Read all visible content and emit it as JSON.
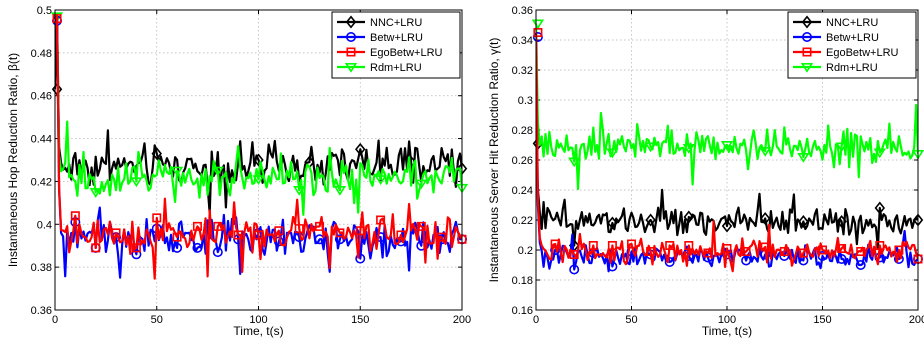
{
  "chart_data": [
    {
      "type": "line",
      "xlabel": "Time, t(s)",
      "ylabel": "Instantaneous Hop Reduction Ratio, β(t)",
      "xlim": [
        0,
        200
      ],
      "ylim": [
        0.36,
        0.5
      ],
      "xticks": [
        "0",
        "50",
        "100",
        "150",
        "200"
      ],
      "yticks": [
        "0.36",
        "0.38",
        "0.4",
        "0.42",
        "0.44",
        "0.46",
        "0.48",
        "0.5"
      ],
      "grid": true,
      "legend_position": "top-right",
      "series": [
        {
          "name": "NNC+LRU",
          "color": "#000000",
          "marker": "diamond",
          "start": [
            0.463,
            0.497,
            0.436
          ],
          "level": 0.427,
          "spread": 0.009,
          "marker_points": [
            [
              1,
              0.463
            ],
            [
              50,
              0.433
            ],
            [
              100,
              0.43
            ],
            [
              125,
              0.429
            ],
            [
              150,
              0.435
            ],
            [
              175,
              0.429
            ],
            [
              200,
              0.426
            ]
          ]
        },
        {
          "name": "Betw+LRU",
          "color": "#0000ff",
          "marker": "circle",
          "start": [
            0.495,
            0.497,
            0.416
          ],
          "level": 0.394,
          "spread": 0.008,
          "marker_points": [
            [
              1,
              0.495
            ],
            [
              10,
              0.401
            ],
            [
              20,
              0.389
            ],
            [
              30,
              0.394
            ],
            [
              40,
              0.386
            ],
            [
              50,
              0.398
            ],
            [
              60,
              0.389
            ],
            [
              70,
              0.389
            ],
            [
              80,
              0.387
            ],
            [
              90,
              0.393
            ],
            [
              100,
              0.396
            ],
            [
              110,
              0.392
            ],
            [
              120,
              0.394
            ],
            [
              130,
              0.393
            ],
            [
              140,
              0.393
            ],
            [
              150,
              0.384
            ],
            [
              160,
              0.394
            ],
            [
              170,
              0.392
            ],
            [
              180,
              0.39
            ],
            [
              190,
              0.393
            ],
            [
              200,
              0.393
            ]
          ]
        },
        {
          "name": "EgoBetw+LRU",
          "color": "#ff0000",
          "marker": "square",
          "start": [
            0.496,
            0.497,
            0.417
          ],
          "level": 0.395,
          "spread": 0.008,
          "marker_points": [
            [
              1,
              0.496
            ],
            [
              10,
              0.404
            ],
            [
              20,
              0.389
            ],
            [
              30,
              0.396
            ],
            [
              40,
              0.389
            ],
            [
              50,
              0.403
            ],
            [
              60,
              0.394
            ],
            [
              70,
              0.399
            ],
            [
              80,
              0.399
            ],
            [
              90,
              0.395
            ],
            [
              100,
              0.395
            ],
            [
              110,
              0.397
            ],
            [
              120,
              0.398
            ],
            [
              130,
              0.399
            ],
            [
              140,
              0.396
            ],
            [
              150,
              0.397
            ],
            [
              160,
              0.402
            ],
            [
              170,
              0.395
            ],
            [
              180,
              0.399
            ],
            [
              190,
              0.394
            ],
            [
              200,
              0.393
            ]
          ]
        },
        {
          "name": "Rdm+LRU",
          "color": "#00ff00",
          "marker": "triangle-down",
          "start": [
            0.497,
            0.498,
            0.432
          ],
          "level": 0.422,
          "spread": 0.008,
          "marker_points": [
            [
              1,
              0.497
            ],
            [
              20,
              0.415
            ],
            [
              40,
              0.42
            ],
            [
              60,
              0.425
            ],
            [
              80,
              0.425
            ],
            [
              100,
              0.421
            ],
            [
              120,
              0.416
            ],
            [
              140,
              0.416
            ],
            [
              160,
              0.421
            ],
            [
              180,
              0.419
            ],
            [
              200,
              0.417
            ]
          ]
        }
      ]
    },
    {
      "type": "line",
      "xlabel": "Time, t(s)",
      "ylabel": "Instantaneous Server Hit Reduction Ratio, γ(t)",
      "xlim": [
        0,
        200
      ],
      "ylim": [
        0.16,
        0.36
      ],
      "xticks": [
        "0",
        "50",
        "100",
        "150",
        "200"
      ],
      "yticks": [
        "0.16",
        "0.18",
        "0.2",
        "0.22",
        "0.24",
        "0.26",
        "0.28",
        "0.3",
        "0.32",
        "0.34",
        "0.36"
      ],
      "grid": true,
      "legend_position": "top-right",
      "series": [
        {
          "name": "NNC+LRU",
          "color": "#000000",
          "marker": "diamond",
          "start": [
            0.271,
            0.24,
            0.225
          ],
          "level": 0.219,
          "spread": 0.008,
          "marker_points": [
            [
              1,
              0.271
            ],
            [
              20,
              0.203
            ],
            [
              40,
              0.218
            ],
            [
              60,
              0.22
            ],
            [
              80,
              0.222
            ],
            [
              100,
              0.216
            ],
            [
              120,
              0.221
            ],
            [
              140,
              0.219
            ],
            [
              160,
              0.219
            ],
            [
              180,
              0.228
            ],
            [
              200,
              0.22
            ]
          ]
        },
        {
          "name": "Betw+LRU",
          "color": "#0000ff",
          "marker": "circle",
          "start": [
            0.342,
            0.23,
            0.205
          ],
          "level": 0.196,
          "spread": 0.007,
          "marker_points": [
            [
              1,
              0.342
            ],
            [
              10,
              0.2
            ],
            [
              20,
              0.187
            ],
            [
              30,
              0.198
            ],
            [
              40,
              0.189
            ],
            [
              50,
              0.199
            ],
            [
              60,
              0.197
            ],
            [
              70,
              0.192
            ],
            [
              80,
              0.196
            ],
            [
              90,
              0.195
            ],
            [
              100,
              0.197
            ],
            [
              110,
              0.193
            ],
            [
              120,
              0.197
            ],
            [
              130,
              0.196
            ],
            [
              140,
              0.193
            ],
            [
              150,
              0.196
            ],
            [
              160,
              0.194
            ],
            [
              170,
              0.19
            ],
            [
              180,
              0.195
            ],
            [
              190,
              0.194
            ],
            [
              200,
              0.194
            ]
          ]
        },
        {
          "name": "EgoBetw+LRU",
          "color": "#ff0000",
          "marker": "square",
          "start": [
            0.345,
            0.234,
            0.208
          ],
          "level": 0.199,
          "spread": 0.007,
          "marker_points": [
            [
              1,
              0.345
            ],
            [
              10,
              0.204
            ],
            [
              20,
              0.197
            ],
            [
              30,
              0.203
            ],
            [
              40,
              0.203
            ],
            [
              50,
              0.204
            ],
            [
              60,
              0.199
            ],
            [
              70,
              0.203
            ],
            [
              80,
              0.203
            ],
            [
              90,
              0.198
            ],
            [
              100,
              0.201
            ],
            [
              110,
              0.199
            ],
            [
              120,
              0.202
            ],
            [
              130,
              0.199
            ],
            [
              140,
              0.198
            ],
            [
              150,
              0.2
            ],
            [
              160,
              0.201
            ],
            [
              170,
              0.199
            ],
            [
              180,
              0.203
            ],
            [
              190,
              0.2
            ],
            [
              200,
              0.194
            ]
          ]
        },
        {
          "name": "Rdm+LRU",
          "color": "#00ff00",
          "marker": "triangle-down",
          "start": [
            0.351,
            0.285,
            0.27
          ],
          "level": 0.269,
          "spread": 0.011,
          "marker_points": [
            [
              1,
              0.351
            ],
            [
              20,
              0.259
            ],
            [
              40,
              0.265
            ],
            [
              60,
              0.269
            ],
            [
              80,
              0.268
            ],
            [
              100,
              0.27
            ],
            [
              120,
              0.266
            ],
            [
              140,
              0.262
            ],
            [
              160,
              0.269
            ],
            [
              180,
              0.265
            ],
            [
              200,
              0.264
            ]
          ]
        }
      ]
    }
  ]
}
